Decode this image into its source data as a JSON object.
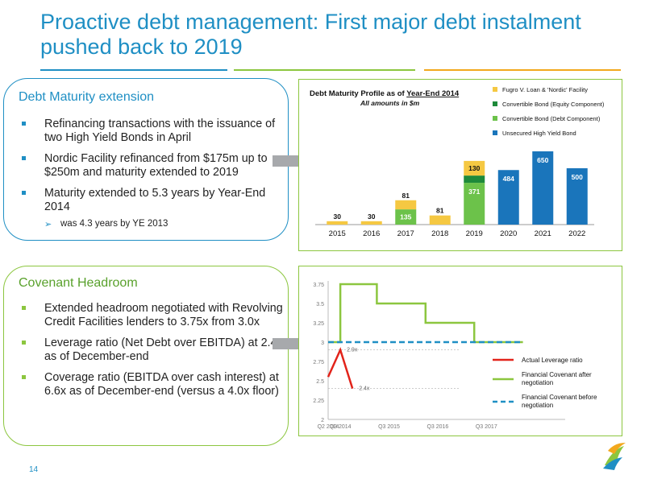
{
  "slide": {
    "title": "Proactive debt management: First major debt instalment pushed back to 2019",
    "page_number": "14"
  },
  "maturity": {
    "heading": "Debt Maturity extension",
    "bullets": [
      "Refinancing transactions with the issuance of two High Yield Bonds in April",
      "Nordic Facility refinanced from $175m up to $250m and maturity extended to 2019",
      "Maturity extended to 5.3 years by Year-End 2014"
    ],
    "sub_bullet": "was 4.3 years by YE 2013"
  },
  "covenant": {
    "heading": "Covenant Headroom",
    "bullets": [
      "Extended headroom negotiated with Revolving Credit Facilities lenders to 3.75x from 3.0x",
      "Leverage ratio (Net Debt over EBITDA) at 2.4x as of December-end",
      "Coverage ratio (EBITDA over cash interest) at 6.6x as of December-end (versus a 4.0x floor)"
    ]
  },
  "colors": {
    "brand_blue": "#1f8fc4",
    "brand_green": "#8cc63f",
    "brand_orange": "#f2a81d",
    "fugro_loan": "#f5c842",
    "equity": "#1e8a3a",
    "debt_component": "#6cc24a",
    "hy_bond": "#1a75bb",
    "actual": "#e2231a",
    "cov_after": "#8cc63f",
    "cov_before": "#1f8fc4"
  },
  "chart_data": [
    {
      "type": "bar",
      "title": "Debt Maturity Profile as of Year-End 2014",
      "subtitle": "All amounts in $m",
      "categories": [
        "2015",
        "2016",
        "2017",
        "2018",
        "2019",
        "2020",
        "2021",
        "2022"
      ],
      "series": [
        {
          "name": "Unsecured High Yield Bond",
          "color": "#1a75bb",
          "values": [
            0,
            0,
            0,
            0,
            0,
            484,
            650,
            500
          ]
        },
        {
          "name": "Convertible Bond (Debt Component)",
          "color": "#6cc24a",
          "values": [
            0,
            0,
            135,
            0,
            371,
            0,
            0,
            0
          ]
        },
        {
          "name": "Convertible Bond (Equity Component)",
          "color": "#1e8a3a",
          "values": [
            0,
            0,
            0,
            0,
            64,
            0,
            0,
            0
          ]
        },
        {
          "name": "Fugro V. Loan & 'Nordic' Facility",
          "color": "#f5c842",
          "values": [
            30,
            30,
            81,
            81,
            130,
            0,
            0,
            0
          ]
        }
      ],
      "legend_order": [
        "Fugro V. Loan & 'Nordic' Facility",
        "Convertible Bond (Equity Component)",
        "Convertible Bond (Debt Component)",
        "Unsecured High Yield Bond"
      ],
      "ylim": [
        0,
        700
      ],
      "legend": "top-right",
      "grid": false
    },
    {
      "type": "line",
      "x_tick_labels": [
        "Q2 2014",
        "Q3 2014",
        "Q3 2015",
        "Q3 2016",
        "Q3 2017"
      ],
      "y_ticks": [
        "2",
        "2.25",
        "2.5",
        "2.75",
        "3",
        "3.25",
        "3.5",
        "3.75"
      ],
      "ylim": [
        2,
        3.75
      ],
      "series": [
        {
          "name": "Actual Leverage ratio",
          "color": "#e2231a",
          "points": [
            [
              "Q2 2014",
              2.55
            ],
            [
              "Q3 2014",
              2.9
            ],
            [
              "Q4 2014",
              2.4
            ]
          ]
        },
        {
          "name": "Financial Covenant after negotiation",
          "color": "#8cc63f",
          "points": [
            [
              "Q2 2014",
              3.0
            ],
            [
              "Q3 2014",
              3.0
            ],
            [
              "Q3 2014",
              3.75
            ],
            [
              "Q2 2015",
              3.75
            ],
            [
              "Q2 2015",
              3.5
            ],
            [
              "Q2 2016",
              3.5
            ],
            [
              "Q2 2016",
              3.25
            ],
            [
              "Q2 2017",
              3.25
            ],
            [
              "Q2 2017",
              3.0
            ],
            [
              "Q2 2018",
              3.0
            ]
          ]
        },
        {
          "name": "Financial Covenant before negotiation",
          "color": "#1f8fc4",
          "points": [
            [
              "Q2 2014",
              3.0
            ],
            [
              "Q2 2018",
              3.0
            ]
          ]
        }
      ],
      "annotations": [
        "2.9x",
        "2.4x"
      ],
      "legend": "right"
    }
  ]
}
